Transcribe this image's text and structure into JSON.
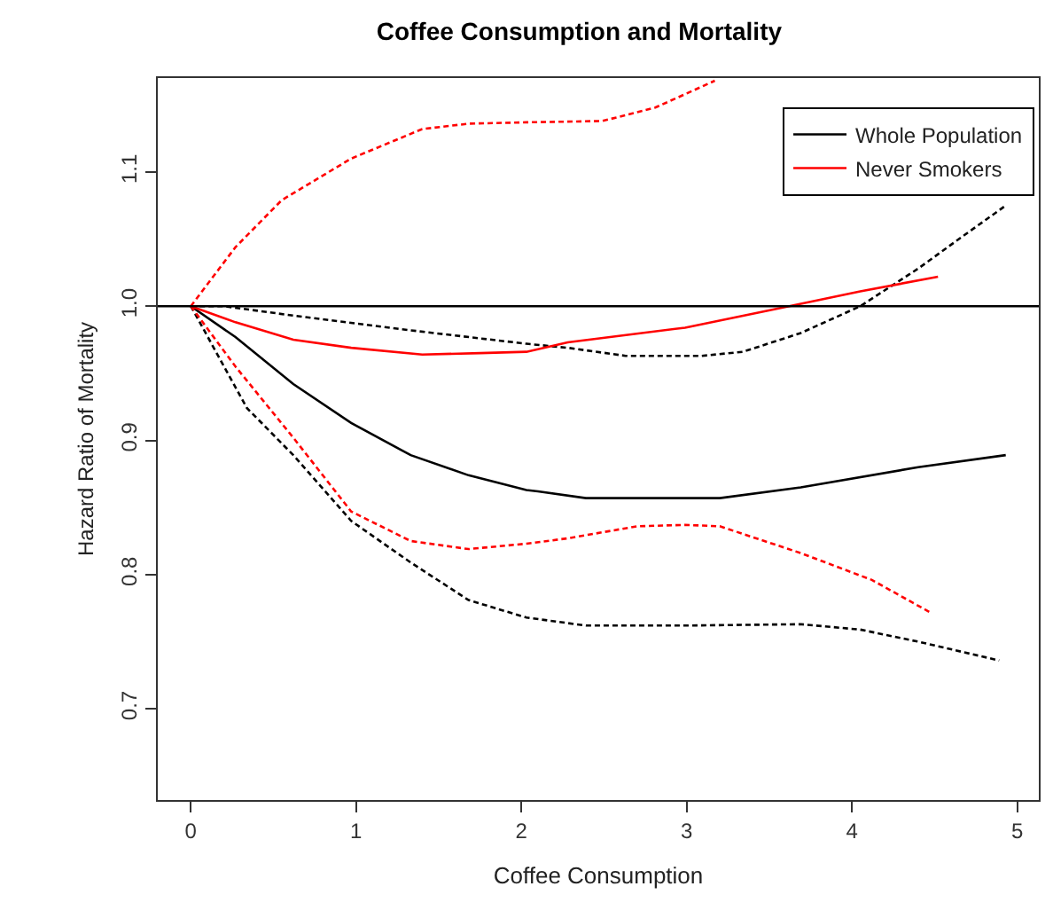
{
  "chart_data": {
    "type": "line",
    "title": "Coffee Consumption and Mortality",
    "xlabel": "Coffee Consumption",
    "ylabel": "Hazard Ratio of Mortality",
    "xlim": [
      -0.2,
      5.13
    ],
    "xticks": [
      0,
      1,
      2,
      3,
      4,
      5
    ],
    "ylim": [
      0.632,
      1.17
    ],
    "yticks": [
      0.7,
      0.8,
      0.9,
      {
        "value": 1.0,
        "label": "1.0"
      },
      1.1
    ],
    "legend": "top right",
    "marker": "none",
    "ref_lines": [
      {
        "axis": "y",
        "value": 1.0,
        "color": "#000000",
        "line_style": "solid"
      }
    ],
    "series": [
      {
        "name": "Whole Population",
        "color": "#000000",
        "line_style": "solid",
        "x": [
          0,
          0.27,
          0.62,
          0.97,
          1.33,
          1.68,
          2.03,
          2.1,
          2.39,
          3.2,
          3.69,
          4.4,
          4.93
        ],
        "values": [
          1.0,
          0.977,
          0.942,
          0.913,
          0.889,
          0.874,
          0.863,
          0.862,
          0.857,
          0.857,
          0.865,
          0.88,
          0.889
        ]
      },
      {
        "color": "#000000",
        "line_style": "dashed",
        "x": [
          0,
          0.2,
          0.62,
          1.33,
          2.03,
          2.28,
          2.63,
          3.09,
          3.34,
          3.69,
          4.05,
          4.4,
          4.68,
          4.93
        ],
        "values": [
          1.0,
          1.0,
          0.993,
          0.982,
          0.972,
          0.969,
          0.963,
          0.963,
          0.966,
          0.98,
          1.0,
          1.028,
          1.053,
          1.075
        ]
      },
      {
        "color": "#000000",
        "line_style": "dashed",
        "x": [
          0,
          0.34,
          0.62,
          0.97,
          1.33,
          1.68,
          2.03,
          2.39,
          2.99,
          3.69,
          4.05,
          4.4,
          4.89
        ],
        "values": [
          1.0,
          0.924,
          0.889,
          0.84,
          0.809,
          0.781,
          0.768,
          0.762,
          0.762,
          0.763,
          0.759,
          0.75,
          0.736
        ]
      },
      {
        "name": "Never Smokers",
        "color": "#ff0000",
        "line_style": "solid",
        "x": [
          0,
          0.27,
          0.62,
          0.97,
          1.4,
          1.75,
          2.03,
          2.28,
          2.99,
          3.62,
          4.05,
          4.52
        ],
        "values": [
          1.0,
          0.988,
          0.975,
          0.969,
          0.964,
          0.965,
          0.966,
          0.973,
          0.984,
          1.0,
          1.011,
          1.022
        ]
      },
      {
        "color": "#ff0000",
        "line_style": "dashed",
        "x": [
          0,
          0.27,
          0.55,
          0.97,
          1.4,
          1.68,
          2.03,
          2.49,
          2.81,
          2.99,
          3.17
        ],
        "values": [
          1.0,
          1.044,
          1.079,
          1.11,
          1.132,
          1.136,
          1.137,
          1.138,
          1.148,
          1.158,
          1.168
        ]
      },
      {
        "color": "#ff0000",
        "line_style": "dashed",
        "x": [
          0,
          0.27,
          0.62,
          0.97,
          1.33,
          1.68,
          2.03,
          2.28,
          2.7,
          2.99,
          3.2,
          3.69,
          4.12,
          4.47
        ],
        "values": [
          1.0,
          0.955,
          0.902,
          0.847,
          0.825,
          0.819,
          0.823,
          0.827,
          0.836,
          0.837,
          0.836,
          0.816,
          0.796,
          0.772
        ]
      }
    ]
  }
}
